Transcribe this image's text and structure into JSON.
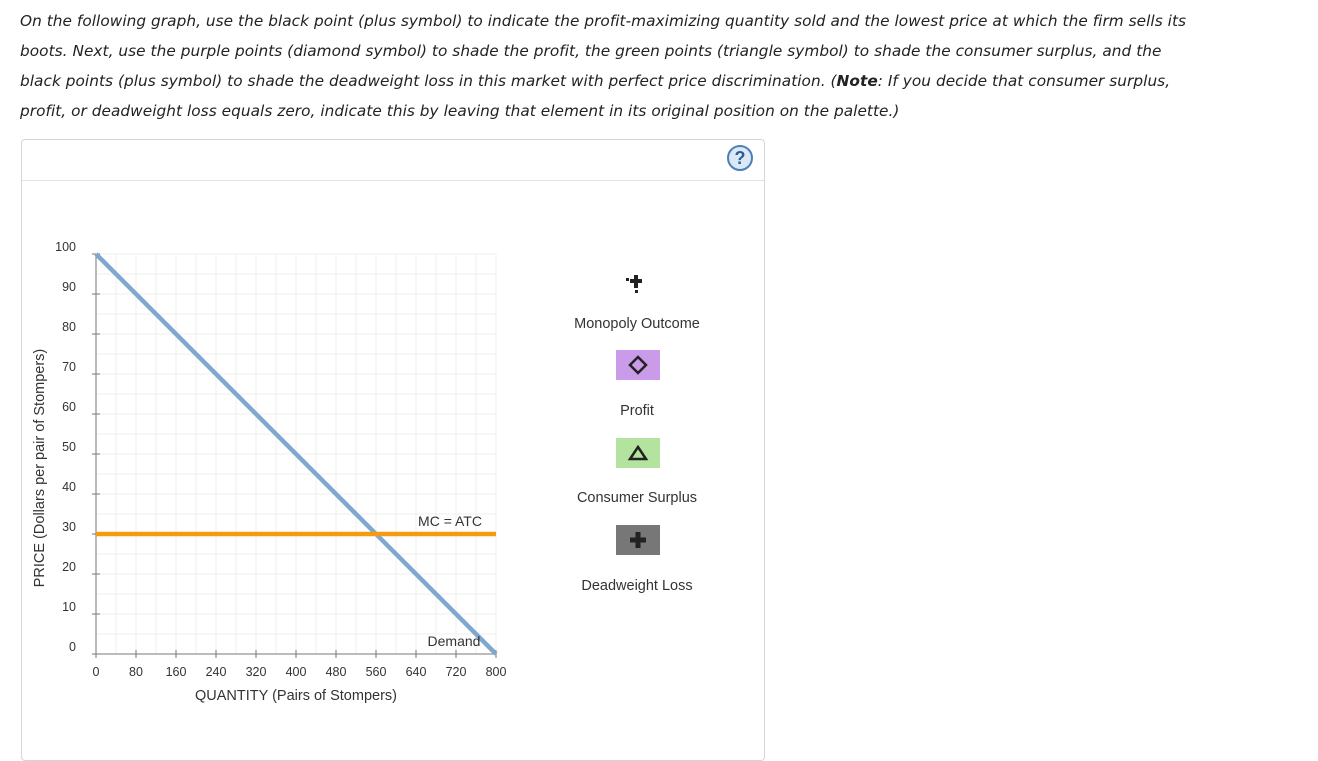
{
  "instructions": {
    "part1": "On the following graph, use the black point (plus symbol) to indicate the profit-maximizing quantity sold and the lowest price at which the firm sells its boots. Next, use the purple points (diamond symbol) to shade the profit, the green points (triangle symbol) to shade the consumer surplus, and the black points (plus symbol) to shade the deadweight loss in this market with perfect price discrimination. (",
    "note_label": "Note",
    "part2": ": If you decide that consumer surplus, profit, or deadweight loss equals zero, indicate this by leaving that element in its original position on the palette.)"
  },
  "help": {
    "label": "?"
  },
  "palette": {
    "monopoly": "Monopoly Outcome",
    "profit": "Profit",
    "consumer_surplus": "Consumer Surplus",
    "deadweight_loss": "Deadweight Loss"
  },
  "colors": {
    "demand": "#7fa8d1",
    "mc_atc": "#f59b12",
    "profit_swatch": "#c99be8",
    "cs_swatch": "#b4e39f",
    "dwl_swatch": "#777777"
  },
  "chart_data": {
    "type": "line",
    "xlabel": "QUANTITY (Pairs of Stompers)",
    "ylabel": "PRICE (Dollars per pair of Stompers)",
    "xlim": [
      0,
      800
    ],
    "ylim": [
      0,
      100
    ],
    "xticks": [
      0,
      80,
      160,
      240,
      320,
      400,
      480,
      560,
      640,
      720,
      800
    ],
    "yticks": [
      0,
      10,
      20,
      30,
      40,
      50,
      60,
      70,
      80,
      90,
      100
    ],
    "grid": true,
    "series": [
      {
        "name": "Demand",
        "x": [
          0,
          800
        ],
        "y": [
          100,
          0
        ]
      },
      {
        "name": "MC = ATC",
        "x": [
          0,
          800
        ],
        "y": [
          30,
          30
        ]
      }
    ]
  }
}
